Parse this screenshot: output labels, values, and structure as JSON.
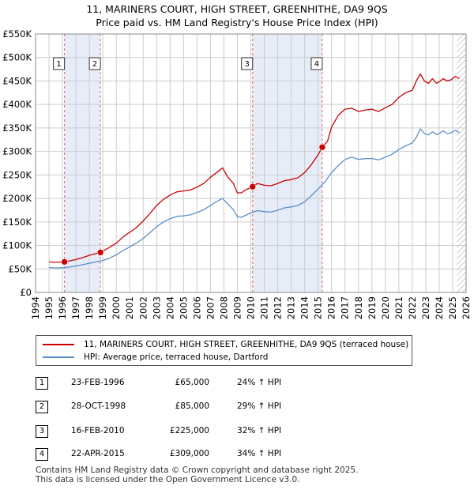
{
  "chart_data": {
    "type": "line",
    "title": "11, MARINERS COURT, HIGH STREET, GREENHITHE, DA9 9QS",
    "subtitle": "Price paid vs. HM Land Registry's House Price Index (HPI)",
    "xlim": [
      1994,
      2026
    ],
    "ylim": [
      0,
      550000
    ],
    "y_ticks": [
      0,
      50000,
      100000,
      150000,
      200000,
      250000,
      300000,
      350000,
      400000,
      450000,
      500000,
      550000
    ],
    "y_tick_labels": [
      "£0",
      "£50K",
      "£100K",
      "£150K",
      "£200K",
      "£250K",
      "£300K",
      "£350K",
      "£400K",
      "£450K",
      "£500K",
      "£550K"
    ],
    "x_ticks": [
      1994,
      1995,
      1996,
      1997,
      1998,
      1999,
      2000,
      2001,
      2002,
      2003,
      2004,
      2005,
      2006,
      2007,
      2008,
      2009,
      2010,
      2011,
      2012,
      2013,
      2014,
      2015,
      2016,
      2017,
      2018,
      2019,
      2020,
      2021,
      2022,
      2023,
      2024,
      2025,
      2026
    ],
    "x_tick_labels": [
      "1994",
      "1995",
      "1996",
      "1997",
      "1998",
      "1999",
      "2000",
      "2001",
      "2002",
      "2003",
      "2004",
      "2005",
      "2006",
      "2007",
      "2008",
      "2009",
      "2010",
      "2011",
      "2012",
      "2013",
      "2014",
      "2015",
      "2016",
      "2017",
      "2018",
      "2019",
      "2020",
      "2021",
      "2022",
      "2023",
      "2024",
      "2025",
      "2026"
    ],
    "series": [
      {
        "name": "11, MARINERS COURT, HIGH STREET, GREENHITHE, DA9 9QS (terraced house)",
        "color": "#cc0000",
        "x": [
          1995.0,
          1995.5,
          1996.15,
          1996.5,
          1997.0,
          1997.5,
          1998.0,
          1998.5,
          1998.82,
          1999.0,
          1999.5,
          2000.0,
          2000.5,
          2001.0,
          2001.5,
          2002.0,
          2002.5,
          2003.0,
          2003.5,
          2004.0,
          2004.5,
          2005.0,
          2005.5,
          2006.0,
          2006.5,
          2007.0,
          2007.5,
          2007.9,
          2008.3,
          2008.7,
          2009.0,
          2009.3,
          2009.6,
          2010.13,
          2010.5,
          2011.0,
          2011.5,
          2012.0,
          2012.5,
          2013.0,
          2013.5,
          2014.0,
          2014.5,
          2015.0,
          2015.31,
          2015.7,
          2016.0,
          2016.5,
          2017.0,
          2017.5,
          2018.0,
          2018.5,
          2019.0,
          2019.5,
          2020.0,
          2020.5,
          2021.0,
          2021.5,
          2022.0,
          2022.3,
          2022.6,
          2022.9,
          2023.2,
          2023.5,
          2023.8,
          2024.0,
          2024.3,
          2024.6,
          2024.9,
          2025.2,
          2025.5
        ],
        "values": [
          65000,
          64000,
          65000,
          67000,
          70000,
          74000,
          79000,
          83000,
          85000,
          88000,
          96000,
          105000,
          118000,
          128000,
          138000,
          152000,
          168000,
          185000,
          198000,
          207000,
          214000,
          216000,
          218000,
          224000,
          232000,
          245000,
          256000,
          265000,
          245000,
          232000,
          212000,
          212000,
          218000,
          225000,
          232000,
          228000,
          227000,
          232000,
          238000,
          240000,
          244000,
          255000,
          272000,
          293000,
          309000,
          322000,
          352000,
          377000,
          390000,
          392000,
          385000,
          388000,
          390000,
          385000,
          393000,
          400000,
          415000,
          425000,
          430000,
          450000,
          465000,
          450000,
          445000,
          455000,
          445000,
          448000,
          455000,
          450000,
          453000,
          460000,
          455000
        ]
      },
      {
        "name": "HPI: Average price, terraced house, Dartford",
        "color": "#5b8fc9",
        "x": [
          1995.0,
          1995.5,
          1996.0,
          1996.5,
          1997.0,
          1997.5,
          1998.0,
          1998.5,
          1999.0,
          1999.5,
          2000.0,
          2000.5,
          2001.0,
          2001.5,
          2002.0,
          2002.5,
          2003.0,
          2003.5,
          2004.0,
          2004.5,
          2005.0,
          2005.5,
          2006.0,
          2006.5,
          2007.0,
          2007.5,
          2007.9,
          2008.3,
          2008.7,
          2009.0,
          2009.3,
          2009.6,
          2010.0,
          2010.5,
          2011.0,
          2011.5,
          2012.0,
          2012.5,
          2013.0,
          2013.5,
          2014.0,
          2014.5,
          2015.0,
          2015.5,
          2016.0,
          2016.5,
          2017.0,
          2017.5,
          2018.0,
          2018.5,
          2019.0,
          2019.5,
          2020.0,
          2020.5,
          2021.0,
          2021.5,
          2022.0,
          2022.3,
          2022.6,
          2022.9,
          2023.2,
          2023.5,
          2023.8,
          2024.0,
          2024.3,
          2024.6,
          2024.9,
          2025.2,
          2025.5
        ],
        "values": [
          53000,
          52000,
          52500,
          54000,
          56000,
          59000,
          62000,
          65000,
          68000,
          73000,
          80000,
          89000,
          97000,
          105000,
          115000,
          127000,
          140000,
          150000,
          157000,
          162000,
          163000,
          165000,
          170000,
          176000,
          185000,
          194000,
          200000,
          188000,
          176000,
          161000,
          160000,
          164000,
          169000,
          174000,
          172000,
          171000,
          175000,
          180000,
          182000,
          185000,
          193000,
          206000,
          220000,
          235000,
          255000,
          270000,
          283000,
          288000,
          283000,
          285000,
          285000,
          282000,
          288000,
          294000,
          304000,
          312000,
          318000,
          330000,
          348000,
          338000,
          335000,
          342000,
          336000,
          338000,
          344000,
          338000,
          340000,
          345000,
          340000
        ]
      }
    ],
    "transactions": [
      {
        "num": "1",
        "date": "23-FEB-1996",
        "x": 1996.15,
        "price_value": 65000,
        "price": "£65,000",
        "hpi": "24% ↑ HPI"
      },
      {
        "num": "2",
        "date": "28-OCT-1998",
        "x": 1998.82,
        "price_value": 85000,
        "price": "£85,000",
        "hpi": "29% ↑ HPI"
      },
      {
        "num": "3",
        "date": "16-FEB-2010",
        "x": 2010.13,
        "price_value": 225000,
        "price": "£225,000",
        "hpi": "32% ↑ HPI"
      },
      {
        "num": "4",
        "date": "22-APR-2015",
        "x": 2015.31,
        "price_value": 309000,
        "price": "£309,000",
        "hpi": "34% ↑ HPI"
      }
    ],
    "shaded_periods": [
      [
        1996.15,
        1998.82
      ],
      [
        2010.13,
        2015.31
      ]
    ],
    "hatched_from": 2025.3,
    "grid": true,
    "legend_position": "below"
  },
  "legend": {
    "property_label": "11, MARINERS COURT, HIGH STREET, GREENHITHE, DA9 9QS (terraced house)",
    "hpi_label": "HPI: Average price, terraced house, Dartford"
  },
  "footer": {
    "line1": "Contains HM Land Registry data © Crown copyright and database right 2025.",
    "line2": "This data is licensed under the Open Government Licence v3.0."
  },
  "colors": {
    "property": "#cc0000",
    "hpi": "#5b8fc9",
    "shade": "#e6ecf8",
    "grid": "#cccccc"
  }
}
